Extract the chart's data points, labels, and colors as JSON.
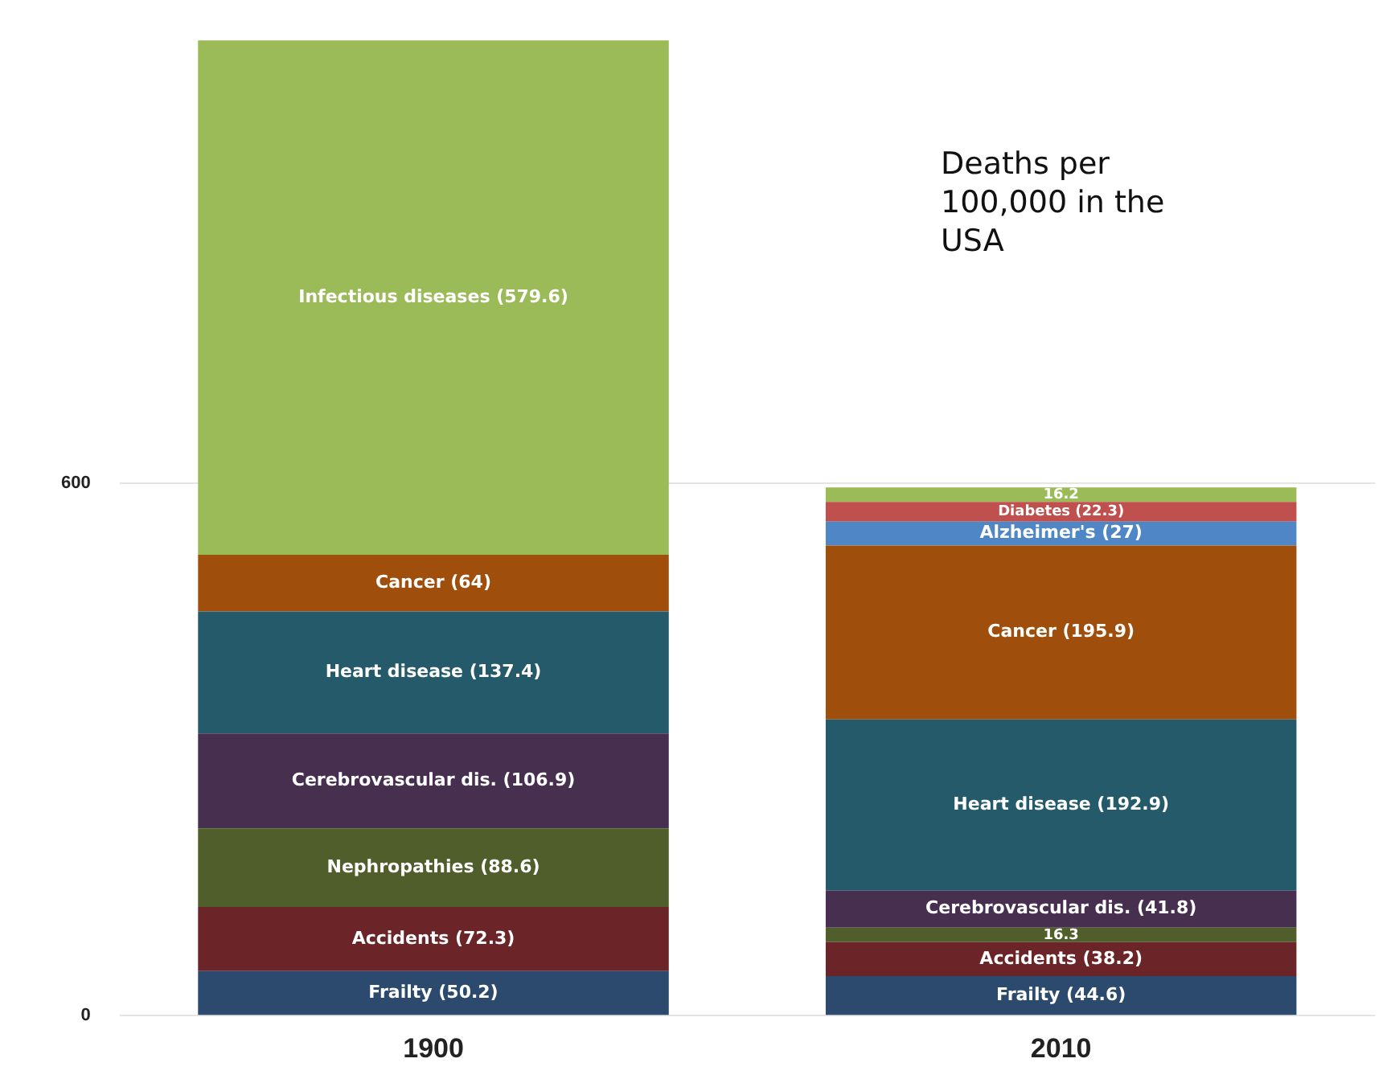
{
  "chart_data": {
    "type": "bar",
    "stacked": true,
    "categories": [
      "1900",
      "2010"
    ],
    "annotations": [
      "Deaths per 100,000 in the USA"
    ],
    "ylim": [
      0,
      1100
    ],
    "yticks": [
      0,
      600
    ],
    "grid": "y",
    "legend": false,
    "series": [
      {
        "color": "#2b4a6d",
        "values": [
          50.2,
          44.6
        ],
        "value_labels": [
          "Frailty (50.2)",
          "Frailty (44.6)"
        ]
      },
      {
        "color": "#6b2428",
        "values": [
          72.3,
          38.2
        ],
        "value_labels": [
          "Accidents (72.3)",
          "Accidents (38.2)"
        ]
      },
      {
        "color": "#4f5e2b",
        "values": [
          88.6,
          16.3
        ],
        "value_labels": [
          "Nephropathies (88.6)",
          "16.3"
        ]
      },
      {
        "color": "#47304f",
        "values": [
          106.9,
          41.8
        ],
        "value_labels": [
          "Cerebrovascular dis. (106.9)",
          "Cerebrovascular dis. (41.8)"
        ]
      },
      {
        "color": "#245a6a",
        "values": [
          137.4,
          192.9
        ],
        "value_labels": [
          "Heart disease (137.4)",
          "Heart disease (192.9)"
        ]
      },
      {
        "color": "#a04e0c",
        "values": [
          64,
          195.9
        ],
        "value_labels": [
          "Cancer (64)",
          "Cancer (195.9)"
        ]
      },
      {
        "color": "#4f86c6",
        "values": [
          null,
          27
        ],
        "value_labels": [
          null,
          "Alzheimer's (27)"
        ]
      },
      {
        "color": "#c0504d",
        "values": [
          null,
          22.3
        ],
        "value_labels": [
          null,
          "Diabetes (22.3)"
        ]
      },
      {
        "color": "#9bbb59",
        "values": [
          579.6,
          16.2
        ],
        "value_labels": [
          "Infectious diseases (579.6)",
          "16.2"
        ]
      }
    ]
  }
}
